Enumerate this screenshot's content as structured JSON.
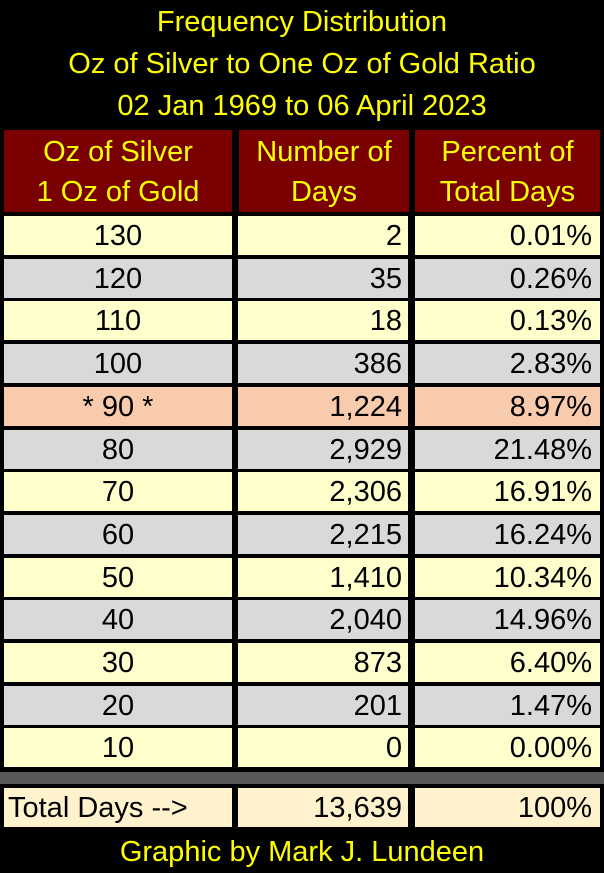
{
  "chart_data": {
    "type": "table",
    "title": [
      "Frequency Distribution",
      "Oz of Silver to One Oz of Gold Ratio",
      "02 Jan 1969 to 06 April 2023"
    ],
    "columns": [
      [
        "Oz of Silver",
        "1 Oz of Gold"
      ],
      [
        "Number of",
        "Days"
      ],
      [
        "Percent of",
        "Total Days"
      ]
    ],
    "rows": [
      [
        "130",
        "2",
        "0.01%"
      ],
      [
        "120",
        "35",
        "0.26%"
      ],
      [
        "110",
        "18",
        "0.13%"
      ],
      [
        "100",
        "386",
        "2.83%"
      ],
      [
        "* 90 *",
        "1,224",
        "8.97%"
      ],
      [
        "80",
        "2,929",
        "21.48%"
      ],
      [
        "70",
        "2,306",
        "16.91%"
      ],
      [
        "60",
        "2,215",
        "16.24%"
      ],
      [
        "50",
        "1,410",
        "10.34%"
      ],
      [
        "40",
        "2,040",
        "14.96%"
      ],
      [
        "30",
        "873",
        "6.40%"
      ],
      [
        "20",
        "201",
        "1.47%"
      ],
      [
        "10",
        "0",
        "0.00%"
      ]
    ],
    "highlight_row": "* 90 *",
    "total": [
      "Total Days -->",
      "13,639",
      "100%"
    ],
    "footer": "Graphic by Mark J. Lundeen"
  },
  "colors": {
    "title_text": "#ffff00",
    "header_bg": "#7a0000",
    "row_odd": "#ffffcc",
    "row_even": "#d9d9d9",
    "highlight": "#f8cbad",
    "total_bg": "#fff2cc"
  }
}
